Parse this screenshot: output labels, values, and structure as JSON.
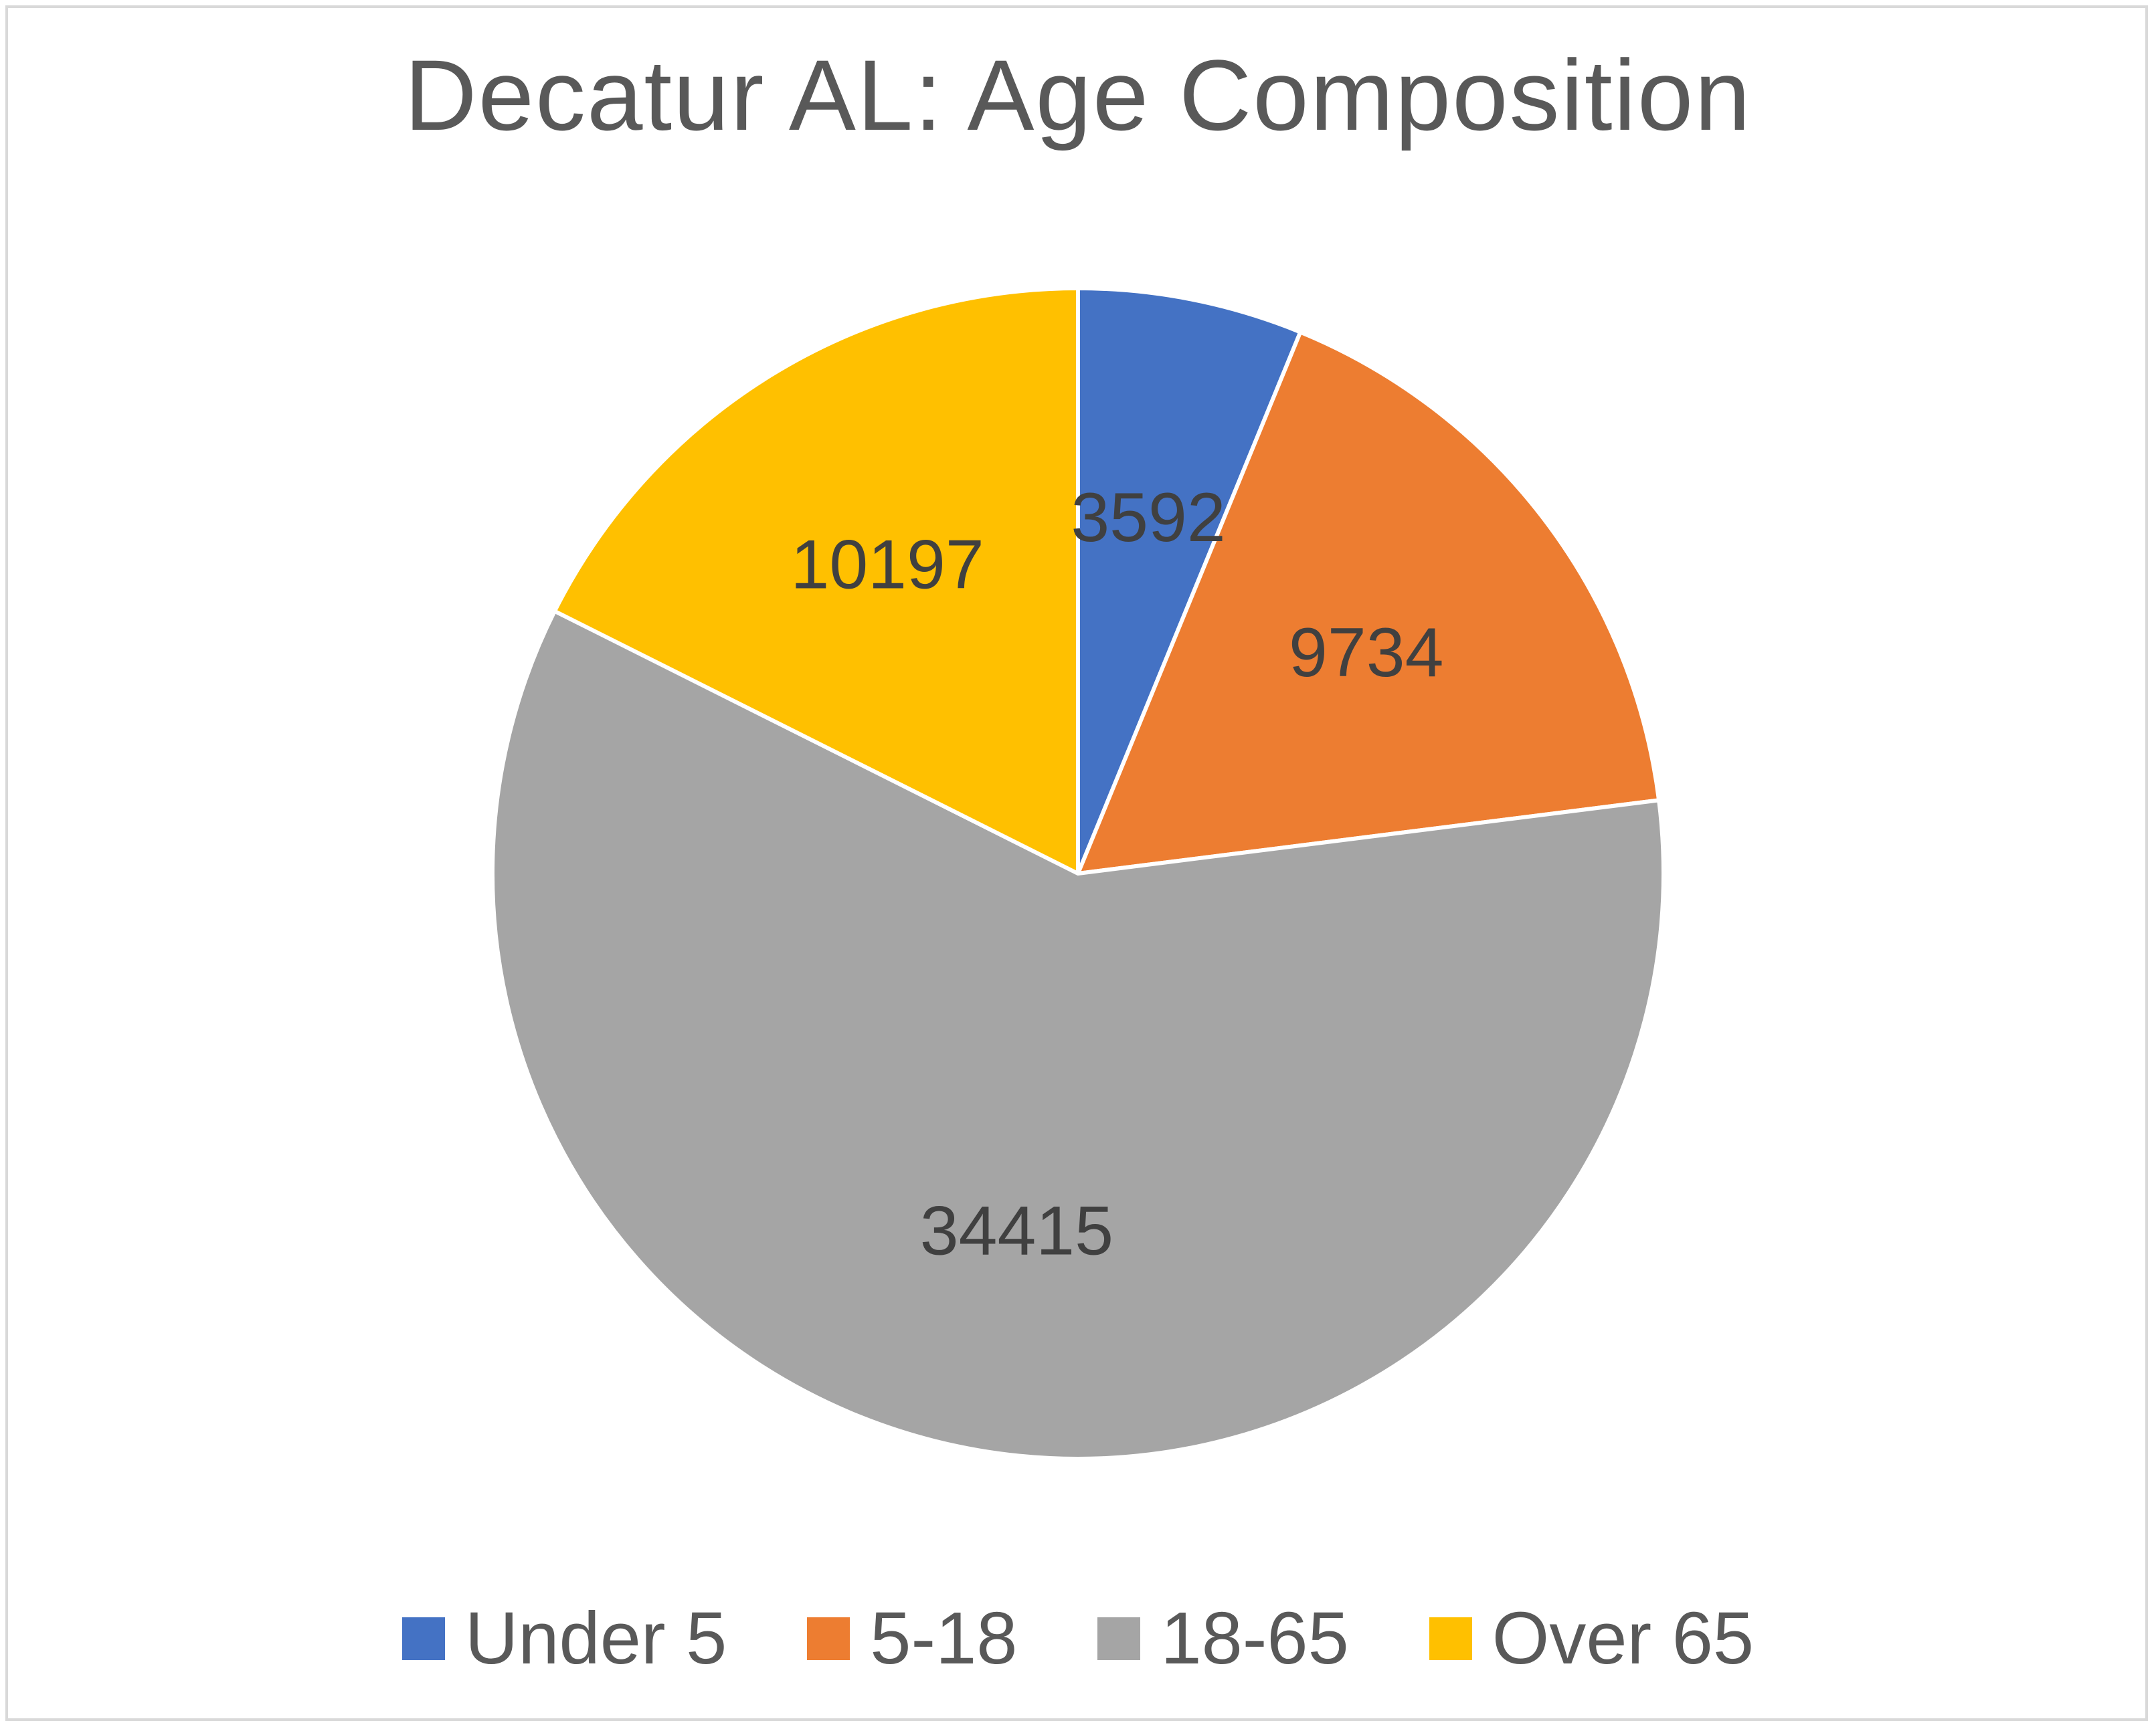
{
  "chart_data": {
    "type": "pie",
    "title": "Decatur AL: Age Composition",
    "categories": [
      "Under 5",
      "5-18",
      "18-65",
      "Over 65"
    ],
    "values": [
      3592,
      9734,
      34415,
      10197
    ],
    "data_labels": [
      "3592",
      "9734",
      "34415",
      "10197"
    ],
    "colors": [
      "#4472c4",
      "#ed7d31",
      "#a5a5a5",
      "#ffc000"
    ],
    "start_angle": "12 o'clock",
    "direction": "clockwise",
    "legend_position": "bottom"
  },
  "legend": {
    "items": [
      {
        "label": "Under 5",
        "color": "#4472c4"
      },
      {
        "label": "5-18",
        "color": "#ed7d31"
      },
      {
        "label": "18-65",
        "color": "#a5a5a5"
      },
      {
        "label": "Over 65",
        "color": "#ffc000"
      }
    ]
  }
}
